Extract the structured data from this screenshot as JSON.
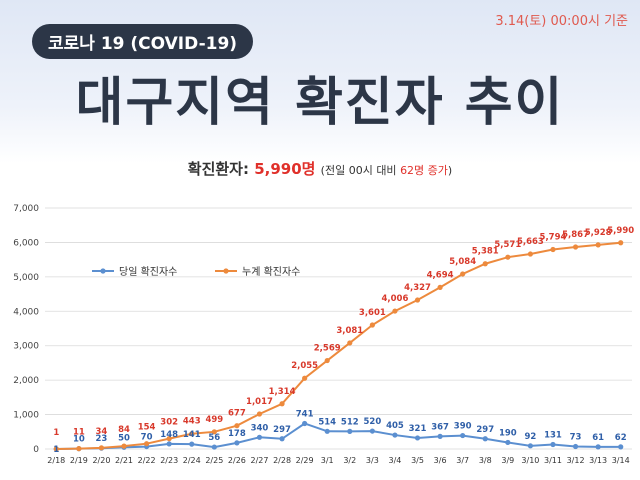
{
  "header": {
    "date_stamp": "3.14(토) 00:00시 기준",
    "pill": "코로나 19 (COVID-19)",
    "title": "대구지역 확진자 추이"
  },
  "summary": {
    "label": "확진환자: ",
    "count": "5,990명",
    "note_prefix": "(전일 00시 대비 ",
    "note_increase": "62명 증가",
    "note_suffix": ")"
  },
  "colors": {
    "daily": "#5b8fd0",
    "cumulative": "#ed8a3d"
  },
  "chart_data": {
    "type": "line",
    "categories": [
      "2/18",
      "2/19",
      "2/20",
      "2/21",
      "2/22",
      "2/23",
      "2/24",
      "2/25",
      "2/26",
      "2/27",
      "2/28",
      "2/29",
      "3/1",
      "3/2",
      "3/3",
      "3/4",
      "3/5",
      "3/6",
      "3/7",
      "3/8",
      "3/9",
      "3/10",
      "3/11",
      "3/12",
      "3/13",
      "3/14"
    ],
    "ylim": [
      0,
      7000
    ],
    "yticks": [
      0,
      1000,
      2000,
      3000,
      4000,
      5000,
      6000,
      7000
    ],
    "ytick_labels": [
      "0",
      "1,000",
      "2,000",
      "3,000",
      "4,000",
      "5,000",
      "6,000",
      "7,000"
    ],
    "legend_position": "upper-left",
    "series": [
      {
        "name": "당일 확진자수",
        "values": [
          1,
          10,
          23,
          50,
          70,
          148,
          141,
          56,
          178,
          340,
          297,
          741,
          514,
          512,
          520,
          405,
          321,
          367,
          390,
          297,
          190,
          92,
          131,
          73,
          61,
          62
        ],
        "labels": [
          "1",
          "10",
          "23",
          "50",
          "70",
          "148",
          "141",
          "56",
          "178",
          "340",
          "297",
          "741",
          "514",
          "512",
          "520",
          "405",
          "321",
          "367",
          "390",
          "297",
          "190",
          "92",
          "131",
          "73",
          "61",
          "62"
        ]
      },
      {
        "name": "누계 확진자수",
        "values": [
          1,
          11,
          34,
          84,
          154,
          302,
          443,
          499,
          677,
          1017,
          1314,
          2055,
          2569,
          3081,
          3601,
          4006,
          4327,
          4694,
          5084,
          5381,
          5571,
          5663,
          5794,
          5867,
          5928,
          5990
        ],
        "labels": [
          "1",
          "11",
          "34",
          "84",
          "154",
          "302",
          "443",
          "499",
          "677",
          "1,017",
          "1,314",
          "2,055",
          "2,569",
          "3,081",
          "3,601",
          "4,006",
          "4,327",
          "4,694",
          "5,084",
          "5,381",
          "5,571",
          "5,663",
          "5,794",
          "5,867",
          "5,928",
          "5,990"
        ]
      }
    ]
  }
}
